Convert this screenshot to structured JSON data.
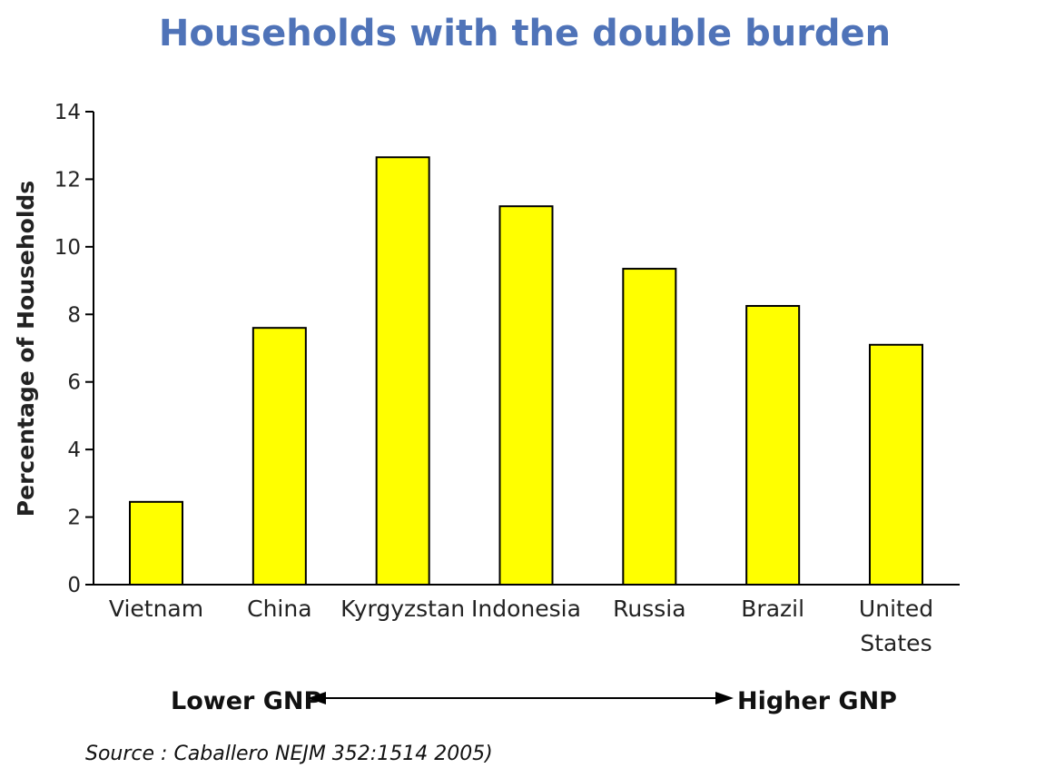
{
  "chart_data": {
    "type": "bar",
    "title": "Households with the double burden",
    "ylabel": "Percentage of Households",
    "xlabel": "",
    "categories": [
      "Vietnam",
      "China",
      "Kyrgyzstan",
      "Indonesia",
      "Russia",
      "Brazil",
      "United States"
    ],
    "category_lines": [
      [
        "Vietnam"
      ],
      [
        "China"
      ],
      [
        "Kyrgyzstan"
      ],
      [
        "Indonesia"
      ],
      [
        "Russia"
      ],
      [
        "Brazil"
      ],
      [
        "United",
        "States"
      ]
    ],
    "values": [
      2.45,
      7.6,
      12.65,
      11.2,
      9.35,
      8.25,
      7.1
    ],
    "ylim": [
      0,
      14
    ],
    "yticks": [
      0,
      2,
      4,
      6,
      8,
      10,
      12,
      14
    ],
    "grid": false,
    "bar_color": "#ffff00",
    "gnp_axis": {
      "left_label": "Lower GNP",
      "right_label": "Higher GNP"
    },
    "source": "Source : Caballero NEJM 352:1514  2005)"
  },
  "colors": {
    "title": "#4f73b8",
    "bar_fill": "#ffff00",
    "bar_stroke": "#000000"
  }
}
